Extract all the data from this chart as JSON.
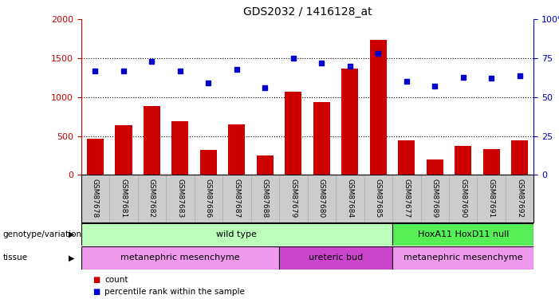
{
  "title": "GDS2032 / 1416128_at",
  "samples": [
    "GSM87678",
    "GSM87681",
    "GSM87682",
    "GSM87683",
    "GSM87686",
    "GSM87687",
    "GSM87688",
    "GSM87679",
    "GSM87680",
    "GSM87684",
    "GSM87685",
    "GSM87677",
    "GSM87689",
    "GSM87690",
    "GSM87691",
    "GSM87692"
  ],
  "counts": [
    470,
    640,
    890,
    690,
    320,
    650,
    250,
    1070,
    940,
    1370,
    1740,
    450,
    200,
    370,
    330,
    450
  ],
  "percentiles": [
    67,
    67,
    73,
    67,
    59,
    68,
    56,
    75,
    72,
    70,
    78,
    60,
    57,
    63,
    62,
    64
  ],
  "bar_color": "#cc0000",
  "dot_color": "#0000cc",
  "ylim_left": [
    0,
    2000
  ],
  "ylim_right": [
    0,
    100
  ],
  "yticks_left": [
    0,
    500,
    1000,
    1500,
    2000
  ],
  "yticks_right": [
    0,
    25,
    50,
    75,
    100
  ],
  "ytick_labels_right": [
    "0",
    "25",
    "50",
    "75",
    "100%"
  ],
  "genotype_groups": [
    {
      "label": "wild type",
      "start": 0,
      "end": 11,
      "color": "#bbffbb"
    },
    {
      "label": "HoxA11 HoxD11 null",
      "start": 11,
      "end": 16,
      "color": "#55ee55"
    }
  ],
  "tissue_groups": [
    {
      "label": "metanephric mesenchyme",
      "start": 0,
      "end": 7,
      "color": "#ee99ee"
    },
    {
      "label": "ureteric bud",
      "start": 7,
      "end": 11,
      "color": "#cc44cc"
    },
    {
      "label": "metanephric mesenchyme",
      "start": 11,
      "end": 16,
      "color": "#ee99ee"
    }
  ],
  "legend_count_color": "#cc0000",
  "legend_percentile_color": "#0000cc",
  "tick_label_color_left": "#cc0000",
  "tick_label_color_right": "#0000cc",
  "xtick_bg": "#cccccc",
  "grid_dotted_vals": [
    500,
    1000,
    1500
  ]
}
